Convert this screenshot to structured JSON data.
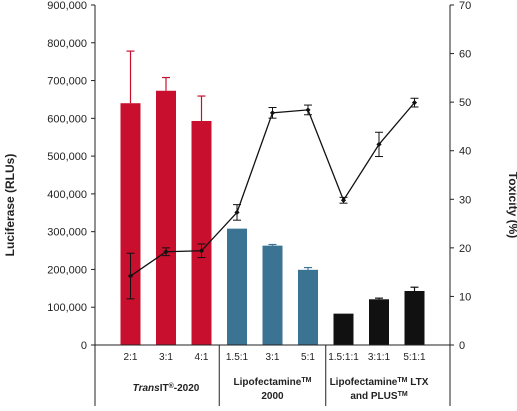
{
  "chart_data": {
    "type": "bar",
    "title": "",
    "y_left": {
      "label": "Luciferase (RLUs)",
      "range": [
        0,
        900000
      ],
      "ticks": [
        "0",
        "100,000",
        "200,000",
        "300,000",
        "400,000",
        "500,000",
        "600,000",
        "700,000",
        "800,000",
        "900,000"
      ],
      "tick_values": [
        0,
        100000,
        200000,
        300000,
        400000,
        500000,
        600000,
        700000,
        800000,
        900000
      ]
    },
    "y_right": {
      "label": "Toxicity (%)",
      "range": [
        0,
        70
      ],
      "ticks": [
        "0",
        "10",
        "20",
        "30",
        "40",
        "50",
        "60",
        "70"
      ],
      "tick_values": [
        0,
        10,
        20,
        30,
        40,
        50,
        60,
        70
      ]
    },
    "categories": [
      "2:1",
      "3:1",
      "4:1",
      "1.5:1",
      "3:1",
      "5:1",
      "1.5:1:1",
      "3:1:1",
      "5:1:1"
    ],
    "groups": [
      {
        "label_parts": [
          {
            "text": "Trans",
            "italic": true
          },
          {
            "text": "IT",
            "italic": false
          },
          {
            "text": "®",
            "sup": true
          },
          {
            "text": "-2020",
            "italic": false
          }
        ],
        "line2": "",
        "color": "#c8102e",
        "count": 3
      },
      {
        "label_parts": [
          {
            "text": "Lipofectamine",
            "italic": false
          },
          {
            "text": "TM",
            "sup": true
          }
        ],
        "line2": "2000",
        "color": "#3b7393",
        "count": 3
      },
      {
        "label_parts": [
          {
            "text": "Lipofectamine",
            "italic": false
          },
          {
            "text": "TM",
            "sup": true
          },
          {
            "text": " LTX",
            "italic": false
          }
        ],
        "line2_parts": [
          {
            "text": "and PLUS",
            "italic": false
          },
          {
            "text": "TM",
            "sup": true
          }
        ],
        "color": "#111111",
        "count": 3
      }
    ],
    "series": [
      {
        "kind": "bar",
        "axis": "left",
        "values": [
          640000,
          673000,
          593000,
          308000,
          263000,
          199000,
          83000,
          121000,
          143000
        ],
        "errors": [
          138000,
          35000,
          66000,
          0,
          3000,
          6000,
          0,
          3000,
          10000
        ],
        "colors": [
          "#c8102e",
          "#c8102e",
          "#c8102e",
          "#3b7393",
          "#3b7393",
          "#3b7393",
          "#111111",
          "#111111",
          "#111111"
        ]
      },
      {
        "kind": "line",
        "axis": "right",
        "values": [
          14.2,
          19.2,
          19.4,
          27.3,
          47.8,
          48.4,
          29.8,
          41.3,
          49.9
        ],
        "errors": [
          4.7,
          0.8,
          1.4,
          1.6,
          1.1,
          1.0,
          0.6,
          2.5,
          0.9
        ],
        "color": "#111111"
      }
    ],
    "grid": false,
    "legend": "none"
  }
}
